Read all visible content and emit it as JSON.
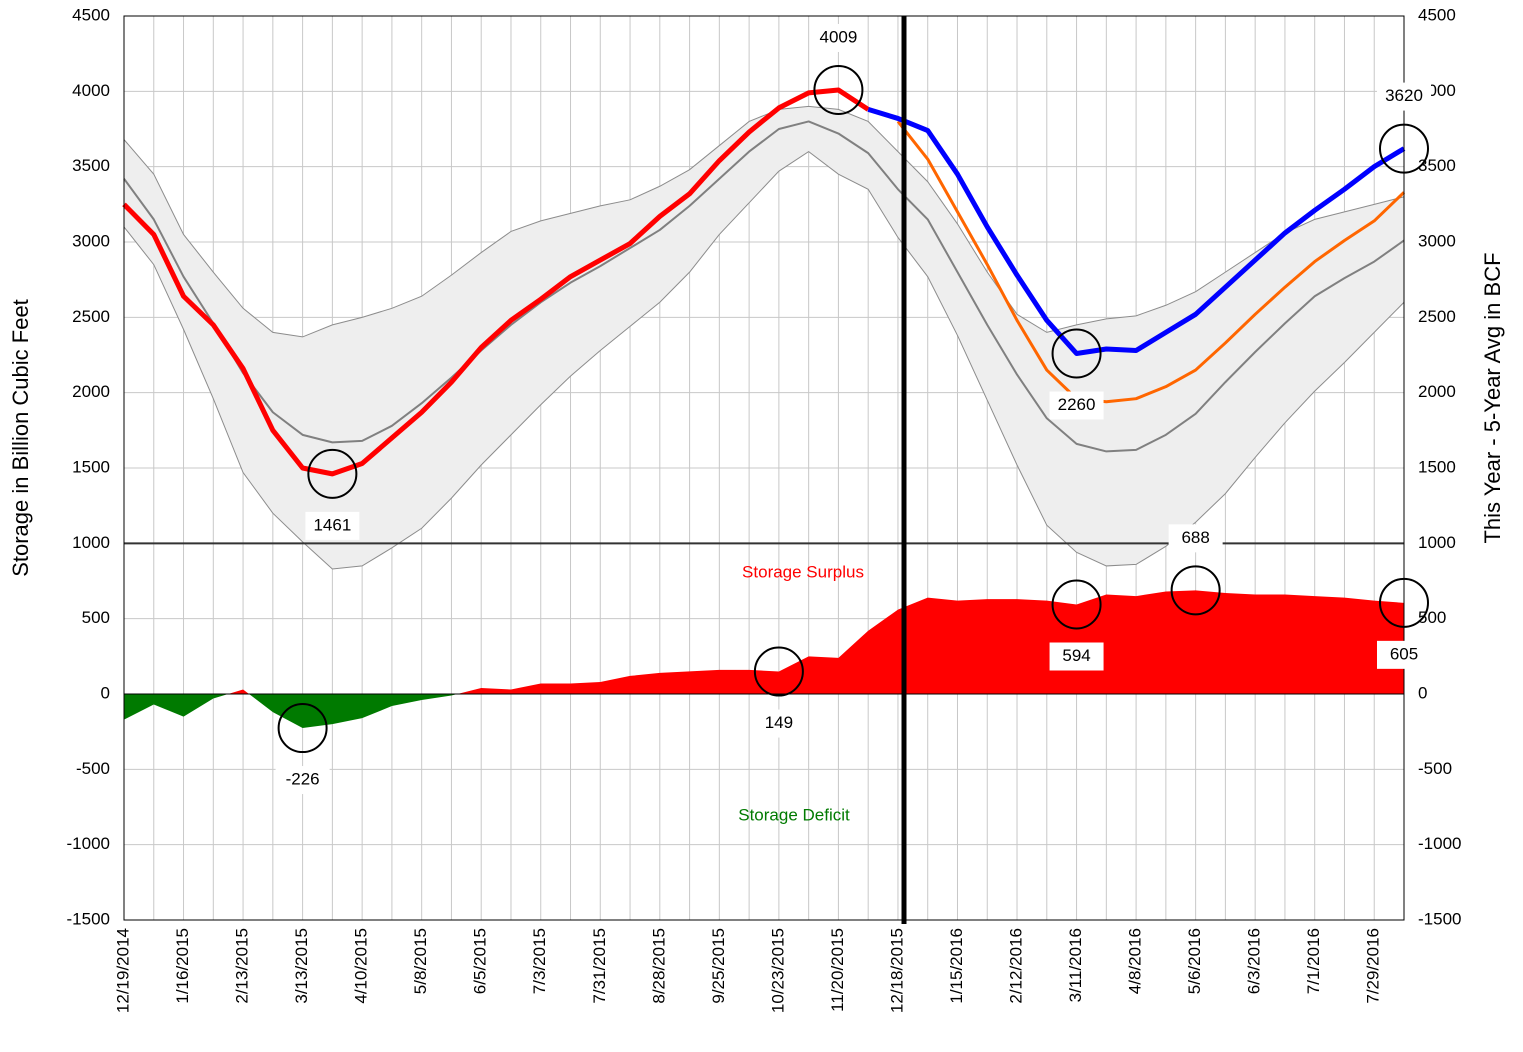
{
  "chart_data": {
    "type": "line",
    "y_label": "Storage in Billion Cubic Feet",
    "y2_label": "This Year - 5-Year Avg in BCF",
    "surplus_label": "Storage Surplus",
    "deficit_label": "Storage Deficit",
    "categories": [
      "12/19/2014",
      null,
      "1/16/2015",
      null,
      "2/13/2015",
      null,
      "3/13/2015",
      null,
      "4/10/2015",
      null,
      "5/8/2015",
      null,
      "6/5/2015",
      null,
      "7/3/2015",
      null,
      "7/31/2015",
      null,
      "8/28/2015",
      null,
      "9/25/2015",
      null,
      "10/23/2015",
      null,
      "11/20/2015",
      null,
      "12/18/2015",
      null,
      "1/15/2016",
      null,
      "2/12/2016",
      null,
      "3/11/2016",
      null,
      "4/8/2016",
      null,
      "5/6/2016",
      null,
      "6/3/2016",
      null,
      "7/1/2016",
      null,
      "7/29/2016",
      null
    ],
    "ylim": [
      -1500,
      4500
    ],
    "yticks": [
      -1500,
      -1000,
      -500,
      0,
      500,
      1000,
      1500,
      2000,
      2500,
      3000,
      3500,
      4000,
      4500
    ],
    "y2lim": [
      -1500,
      4500
    ],
    "y2ticks": [
      -1500,
      -1000,
      -500,
      0,
      500,
      1000,
      1500,
      2000,
      2500,
      3000,
      3500,
      4000,
      4500
    ],
    "grid": true,
    "band": {
      "color": "#eeeeee",
      "edge_color": "#8c8c8c",
      "upper": [
        3680,
        3450,
        3050,
        2800,
        2560,
        2400,
        2370,
        2450,
        2500,
        2560,
        2640,
        2780,
        2930,
        3070,
        3140,
        3190,
        3240,
        3280,
        3370,
        3480,
        3640,
        3800,
        3880,
        3900,
        3880,
        3800,
        3600,
        3400,
        3120,
        2800,
        2520,
        2400,
        2450,
        2490,
        2510,
        2580,
        2670,
        2800,
        2930,
        3060,
        3150,
        3200,
        3250,
        3300
      ],
      "lower": [
        3100,
        2850,
        2420,
        1960,
        1470,
        1200,
        1010,
        830,
        850,
        970,
        1100,
        1300,
        1520,
        1720,
        1920,
        2110,
        2280,
        2440,
        2600,
        2800,
        3050,
        3260,
        3470,
        3600,
        3450,
        3350,
        3030,
        2770,
        2380,
        1950,
        1520,
        1120,
        940,
        850,
        860,
        980,
        1140,
        1330,
        1570,
        1800,
        2010,
        2200,
        2400,
        2600
      ]
    },
    "series": [
      {
        "color": "#808080",
        "width": 2,
        "values": [
          3420,
          3150,
          2770,
          2460,
          2130,
          1870,
          1720,
          1670,
          1680,
          1780,
          1930,
          2100,
          2280,
          2450,
          2600,
          2730,
          2840,
          2960,
          3080,
          3240,
          3420,
          3600,
          3750,
          3800,
          3720,
          3590,
          3350,
          3150,
          2800,
          2450,
          2120,
          1830,
          1660,
          1610,
          1620,
          1720,
          1860,
          2070,
          2270,
          2460,
          2640,
          2760,
          2870,
          3010
        ]
      },
      {
        "color": "#ff6600",
        "width": 3,
        "values": [
          null,
          null,
          null,
          null,
          null,
          null,
          null,
          null,
          null,
          null,
          null,
          null,
          null,
          null,
          null,
          null,
          null,
          null,
          null,
          null,
          null,
          null,
          null,
          null,
          null,
          null,
          3800,
          3550,
          3200,
          2850,
          2480,
          2150,
          1960,
          1940,
          1960,
          2040,
          2150,
          2330,
          2520,
          2700,
          2870,
          3010,
          3140,
          3330
        ]
      },
      {
        "color": "#ff0000",
        "width": 5,
        "values": [
          3250,
          3050,
          2640,
          2450,
          2160,
          1750,
          1500,
          1461,
          1530,
          1700,
          1870,
          2070,
          2300,
          2480,
          2620,
          2770,
          2880,
          2990,
          3170,
          3320,
          3540,
          3730,
          3890,
          3990,
          4009,
          3880,
          null,
          null,
          null,
          null,
          null,
          null,
          null,
          null,
          null,
          null,
          null,
          null,
          null,
          null,
          null,
          null,
          null,
          null
        ],
        "value_labels": [
          null,
          null,
          null,
          null,
          null,
          null,
          null,
          "1461",
          null,
          null,
          null,
          null,
          null,
          null,
          null,
          null,
          null,
          null,
          null,
          null,
          null,
          null,
          null,
          null,
          "4009",
          null,
          null,
          null,
          null,
          null,
          null,
          null,
          null,
          null,
          null,
          null,
          null,
          null,
          null,
          null,
          null,
          null,
          null,
          null
        ]
      },
      {
        "color": "#0000ff",
        "width": 5,
        "values": [
          null,
          null,
          null,
          null,
          null,
          null,
          null,
          null,
          null,
          null,
          null,
          null,
          null,
          null,
          null,
          null,
          null,
          null,
          null,
          null,
          null,
          null,
          null,
          null,
          null,
          3880,
          3820,
          3740,
          3450,
          3100,
          2780,
          2480,
          2260,
          2290,
          2280,
          2400,
          2520,
          2700,
          2880,
          3060,
          3210,
          3350,
          3500,
          3620
        ],
        "value_labels": [
          null,
          null,
          null,
          null,
          null,
          null,
          null,
          null,
          null,
          null,
          null,
          null,
          null,
          null,
          null,
          null,
          null,
          null,
          null,
          null,
          null,
          null,
          null,
          null,
          null,
          null,
          null,
          null,
          null,
          null,
          null,
          null,
          "2260",
          null,
          null,
          null,
          null,
          null,
          null,
          null,
          null,
          null,
          null,
          "3620"
        ]
      }
    ],
    "area": {
      "axis": "y2",
      "positive_color": "#ff0000",
      "negative_color": "#007a00",
      "values": [
        -170,
        -70,
        -150,
        -30,
        30,
        -120,
        -226,
        -200,
        -160,
        -80,
        -40,
        -10,
        40,
        30,
        70,
        70,
        80,
        120,
        140,
        150,
        160,
        160,
        149,
        250,
        240,
        420,
        560,
        640,
        620,
        630,
        630,
        620,
        594,
        660,
        650,
        680,
        688,
        670,
        660,
        660,
        650,
        640,
        620,
        605
      ],
      "value_labels": [
        null,
        null,
        null,
        null,
        null,
        null,
        "-226",
        null,
        null,
        null,
        null,
        null,
        null,
        null,
        null,
        null,
        null,
        null,
        null,
        null,
        null,
        null,
        "149",
        null,
        null,
        null,
        null,
        null,
        null,
        null,
        null,
        null,
        "594",
        null,
        null,
        null,
        "688",
        null,
        null,
        null,
        null,
        null,
        null,
        "605"
      ]
    }
  }
}
